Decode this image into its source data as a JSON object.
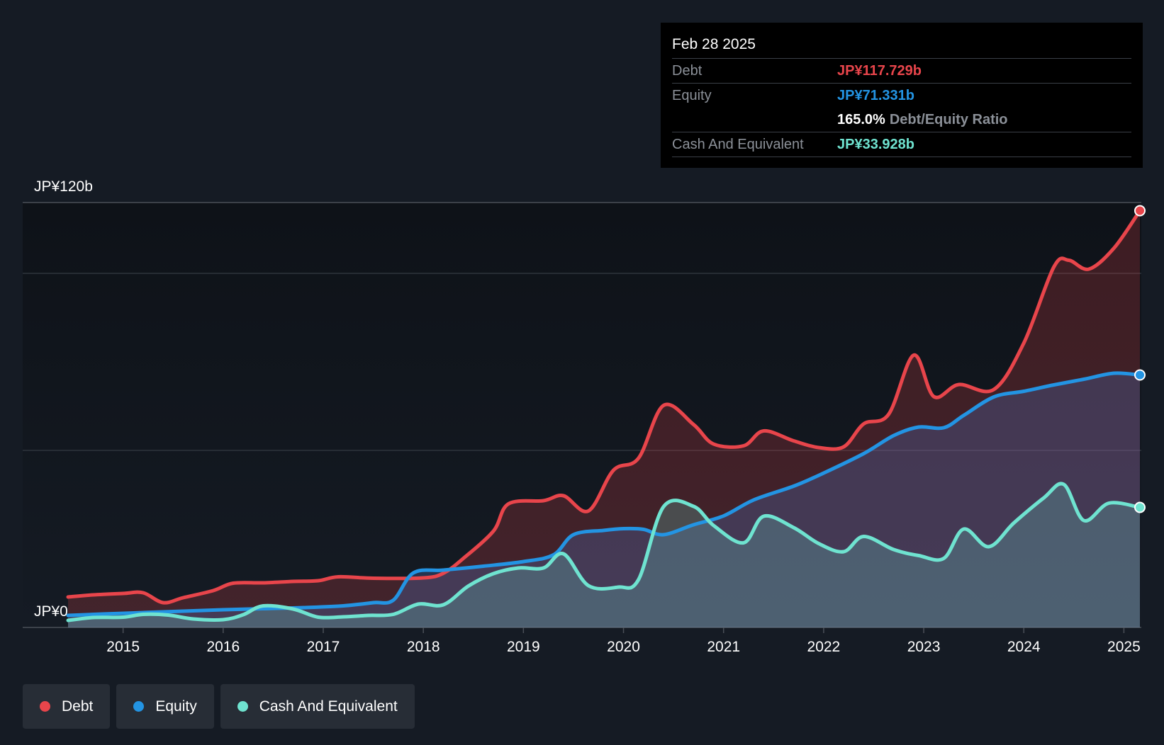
{
  "tooltip": {
    "date": "Feb 28 2025",
    "debt_label": "Debt",
    "debt_value": "JP¥117.729b",
    "equity_label": "Equity",
    "equity_value": "JP¥71.331b",
    "ratio_value": "165.0%",
    "ratio_label": "Debt/Equity Ratio",
    "cash_label": "Cash And Equivalent",
    "cash_value": "JP¥33.928b"
  },
  "legend": [
    {
      "label": "Debt",
      "color": "#e8454b"
    },
    {
      "label": "Equity",
      "color": "#2394e3"
    },
    {
      "label": "Cash And Equivalent",
      "color": "#6fe3d0"
    }
  ],
  "colors": {
    "debt": "#e8454b",
    "equity": "#2394e3",
    "cash": "#6fe3d0",
    "background": "#151b24"
  },
  "chart_data": {
    "type": "area",
    "y_label_top": "JP¥120b",
    "y_label_bottom": "JP¥0",
    "ylim": [
      0,
      120
    ],
    "xlim": [
      2014.45,
      2025.16
    ],
    "x_ticks": [
      "2015",
      "2016",
      "2017",
      "2018",
      "2019",
      "2020",
      "2021",
      "2022",
      "2023",
      "2024",
      "2025"
    ],
    "grid": true,
    "legend_position": "bottom-left",
    "series": [
      {
        "name": "Debt",
        "color": "#e8454b",
        "points": [
          [
            2014.45,
            8.6
          ],
          [
            2014.7,
            9.2
          ],
          [
            2015.0,
            9.6
          ],
          [
            2015.2,
            9.8
          ],
          [
            2015.4,
            7.0
          ],
          [
            2015.6,
            8.4
          ],
          [
            2015.9,
            10.4
          ],
          [
            2016.1,
            12.5
          ],
          [
            2016.4,
            12.6
          ],
          [
            2016.7,
            13.0
          ],
          [
            2016.95,
            13.2
          ],
          [
            2017.15,
            14.3
          ],
          [
            2017.5,
            13.9
          ],
          [
            2018.0,
            14.0
          ],
          [
            2018.2,
            15.3
          ],
          [
            2018.4,
            19.5
          ],
          [
            2018.7,
            27.2
          ],
          [
            2018.85,
            34.9
          ],
          [
            2019.2,
            35.8
          ],
          [
            2019.4,
            37.2
          ],
          [
            2019.65,
            32.9
          ],
          [
            2019.9,
            44.4
          ],
          [
            2020.15,
            47.8
          ],
          [
            2020.4,
            62.7
          ],
          [
            2020.7,
            57.3
          ],
          [
            2020.9,
            51.8
          ],
          [
            2021.2,
            51.3
          ],
          [
            2021.4,
            55.5
          ],
          [
            2021.7,
            52.7
          ],
          [
            2021.95,
            50.8
          ],
          [
            2022.2,
            51.0
          ],
          [
            2022.4,
            57.5
          ],
          [
            2022.65,
            60.2
          ],
          [
            2022.9,
            76.9
          ],
          [
            2023.1,
            65.2
          ],
          [
            2023.35,
            68.6
          ],
          [
            2023.7,
            67.2
          ],
          [
            2024.0,
            80.3
          ],
          [
            2024.3,
            101.8
          ],
          [
            2024.45,
            103.7
          ],
          [
            2024.65,
            101.2
          ],
          [
            2024.9,
            107.1
          ],
          [
            2025.16,
            117.7
          ]
        ]
      },
      {
        "name": "Equity",
        "color": "#2394e3",
        "points": [
          [
            2014.45,
            3.4
          ],
          [
            2014.8,
            3.8
          ],
          [
            2015.2,
            4.2
          ],
          [
            2015.6,
            4.6
          ],
          [
            2016.0,
            5.0
          ],
          [
            2016.4,
            5.3
          ],
          [
            2016.8,
            5.6
          ],
          [
            2017.2,
            6.1
          ],
          [
            2017.5,
            7.0
          ],
          [
            2017.7,
            7.7
          ],
          [
            2017.9,
            15.4
          ],
          [
            2018.2,
            16.2
          ],
          [
            2018.6,
            17.3
          ],
          [
            2019.0,
            18.6
          ],
          [
            2019.3,
            20.5
          ],
          [
            2019.5,
            26.2
          ],
          [
            2019.8,
            27.4
          ],
          [
            2020.0,
            27.9
          ],
          [
            2020.2,
            27.7
          ],
          [
            2020.4,
            26.2
          ],
          [
            2020.7,
            29.0
          ],
          [
            2021.0,
            31.5
          ],
          [
            2021.3,
            36.0
          ],
          [
            2021.7,
            39.9
          ],
          [
            2022.0,
            43.6
          ],
          [
            2022.4,
            49.1
          ],
          [
            2022.7,
            54.2
          ],
          [
            2022.95,
            56.6
          ],
          [
            2023.2,
            56.4
          ],
          [
            2023.4,
            59.9
          ],
          [
            2023.7,
            65.1
          ],
          [
            2024.0,
            66.7
          ],
          [
            2024.3,
            68.5
          ],
          [
            2024.6,
            70.1
          ],
          [
            2024.9,
            71.8
          ],
          [
            2025.16,
            71.3
          ]
        ]
      },
      {
        "name": "Cash And Equivalent",
        "color": "#6fe3d0",
        "points": [
          [
            2014.45,
            2.0
          ],
          [
            2014.7,
            2.8
          ],
          [
            2015.0,
            2.9
          ],
          [
            2015.2,
            3.7
          ],
          [
            2015.45,
            3.5
          ],
          [
            2015.7,
            2.4
          ],
          [
            2016.0,
            2.2
          ],
          [
            2016.2,
            3.6
          ],
          [
            2016.4,
            6.1
          ],
          [
            2016.7,
            5.2
          ],
          [
            2016.95,
            2.9
          ],
          [
            2017.2,
            3.0
          ],
          [
            2017.45,
            3.4
          ],
          [
            2017.7,
            3.7
          ],
          [
            2017.95,
            6.6
          ],
          [
            2018.2,
            6.4
          ],
          [
            2018.45,
            11.7
          ],
          [
            2018.7,
            15.2
          ],
          [
            2018.95,
            16.8
          ],
          [
            2019.2,
            16.8
          ],
          [
            2019.4,
            20.8
          ],
          [
            2019.65,
            11.8
          ],
          [
            2019.95,
            11.4
          ],
          [
            2020.15,
            13.5
          ],
          [
            2020.4,
            34.1
          ],
          [
            2020.7,
            34.2
          ],
          [
            2020.9,
            28.8
          ],
          [
            2021.2,
            23.9
          ],
          [
            2021.4,
            31.4
          ],
          [
            2021.7,
            28.2
          ],
          [
            2021.95,
            23.7
          ],
          [
            2022.2,
            21.4
          ],
          [
            2022.4,
            25.7
          ],
          [
            2022.7,
            22.0
          ],
          [
            2022.95,
            20.3
          ],
          [
            2023.2,
            19.5
          ],
          [
            2023.4,
            27.8
          ],
          [
            2023.65,
            22.8
          ],
          [
            2023.9,
            29.5
          ],
          [
            2024.2,
            36.6
          ],
          [
            2024.4,
            40.4
          ],
          [
            2024.6,
            30.2
          ],
          [
            2024.85,
            35.1
          ],
          [
            2025.16,
            33.9
          ]
        ]
      }
    ]
  }
}
